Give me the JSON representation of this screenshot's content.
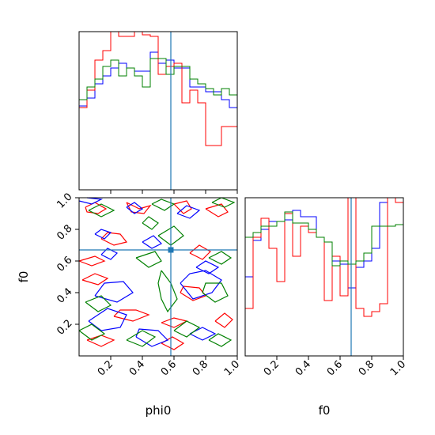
{
  "chart_data": {
    "type": "corner",
    "xlabels": [
      "phi0",
      "f0"
    ],
    "ylabels": [
      "",
      "f0"
    ],
    "tick_labels": [
      "0.2",
      "0.4",
      "0.6",
      "0.8",
      "1.0"
    ],
    "xlim": [
      0,
      1
    ],
    "ylim": [
      0,
      1
    ],
    "truth": {
      "phi0": 0.58,
      "f0": 0.67,
      "color": "#1f77b4"
    },
    "series_colors": [
      "#0000ff",
      "#ff0000",
      "#008000"
    ],
    "hist_phi0": {
      "bin_edges": [
        0.0,
        0.05,
        0.1,
        0.15,
        0.2,
        0.25,
        0.3,
        0.35,
        0.4,
        0.45,
        0.5,
        0.55,
        0.6,
        0.65,
        0.7,
        0.75,
        0.8,
        0.85,
        0.9,
        0.95,
        1.0
      ],
      "blue": [
        0.53,
        0.58,
        0.67,
        0.72,
        0.77,
        0.8,
        0.77,
        0.75,
        0.75,
        0.87,
        0.8,
        0.82,
        0.77,
        0.77,
        0.65,
        0.65,
        0.62,
        0.62,
        0.57,
        0.52
      ],
      "red": [
        0.52,
        0.63,
        0.82,
        0.88,
        1.0,
        0.97,
        0.97,
        1.0,
        0.98,
        0.97,
        0.73,
        0.78,
        0.8,
        0.55,
        0.63,
        0.55,
        0.28,
        0.28,
        0.4,
        0.4
      ],
      "green": [
        0.57,
        0.65,
        0.7,
        0.78,
        0.82,
        0.72,
        0.77,
        0.72,
        0.65,
        0.83,
        0.83,
        0.73,
        0.78,
        0.78,
        0.7,
        0.67,
        0.64,
        0.6,
        0.64,
        0.6
      ]
    },
    "hist_f0": {
      "bin_edges": [
        0.0,
        0.05,
        0.1,
        0.15,
        0.2,
        0.25,
        0.3,
        0.35,
        0.4,
        0.45,
        0.5,
        0.55,
        0.6,
        0.65,
        0.7,
        0.75,
        0.8,
        0.85,
        0.9,
        0.95,
        1.0
      ],
      "blue": [
        0.5,
        0.73,
        0.8,
        0.85,
        0.85,
        0.86,
        0.92,
        0.88,
        0.88,
        0.75,
        0.72,
        0.6,
        0.58,
        0.43,
        0.56,
        0.6,
        0.68,
        0.97,
        1.0,
        1.0
      ],
      "red": [
        0.3,
        0.75,
        0.87,
        0.68,
        0.47,
        0.9,
        0.63,
        0.82,
        0.78,
        0.75,
        0.35,
        0.63,
        0.38,
        1.0,
        0.3,
        0.25,
        0.28,
        0.33,
        1.0,
        0.97
      ],
      "green": [
        0.75,
        0.78,
        0.82,
        0.82,
        0.85,
        0.91,
        0.84,
        0.84,
        0.8,
        0.75,
        0.72,
        0.57,
        0.6,
        0.58,
        0.6,
        0.65,
        0.82,
        0.82,
        0.82,
        0.83
      ]
    },
    "contours_2d": [
      {
        "color": "#ff0000",
        "points": [
          [
            0.04,
            0.94
          ],
          [
            0.1,
            0.97
          ],
          [
            0.17,
            0.93
          ],
          [
            0.12,
            0.9
          ],
          [
            0.05,
            0.91
          ],
          [
            0.04,
            0.94
          ]
        ]
      },
      {
        "color": "#ff0000",
        "points": [
          [
            0.3,
            0.97
          ],
          [
            0.38,
            0.93
          ],
          [
            0.45,
            0.95
          ],
          [
            0.41,
            0.9
          ],
          [
            0.33,
            0.91
          ],
          [
            0.3,
            0.97
          ]
        ]
      },
      {
        "color": "#ff0000",
        "points": [
          [
            0.6,
            0.96
          ],
          [
            0.66,
            0.9
          ],
          [
            0.71,
            0.93
          ],
          [
            0.68,
            0.98
          ],
          [
            0.6,
            0.96
          ]
        ]
      },
      {
        "color": "#ff0000",
        "points": [
          [
            0.8,
            0.93
          ],
          [
            0.88,
            0.88
          ],
          [
            0.94,
            0.91
          ],
          [
            0.9,
            0.96
          ],
          [
            0.8,
            0.93
          ]
        ]
      },
      {
        "color": "#ff0000",
        "points": [
          [
            0.14,
            0.74
          ],
          [
            0.22,
            0.7
          ],
          [
            0.3,
            0.72
          ],
          [
            0.26,
            0.77
          ],
          [
            0.18,
            0.78
          ],
          [
            0.14,
            0.74
          ]
        ]
      },
      {
        "color": "#ff0000",
        "points": [
          [
            0.0,
            0.6
          ],
          [
            0.08,
            0.57
          ],
          [
            0.16,
            0.6
          ],
          [
            0.1,
            0.63
          ],
          [
            0.0,
            0.6
          ]
        ]
      },
      {
        "color": "#ff0000",
        "points": [
          [
            0.02,
            0.48
          ],
          [
            0.12,
            0.45
          ],
          [
            0.18,
            0.49
          ],
          [
            0.1,
            0.52
          ],
          [
            0.02,
            0.48
          ]
        ]
      },
      {
        "color": "#ff0000",
        "points": [
          [
            0.7,
            0.65
          ],
          [
            0.78,
            0.61
          ],
          [
            0.83,
            0.66
          ],
          [
            0.76,
            0.7
          ],
          [
            0.7,
            0.65
          ]
        ]
      },
      {
        "color": "#ff0000",
        "points": [
          [
            0.64,
            0.4
          ],
          [
            0.72,
            0.35
          ],
          [
            0.8,
            0.38
          ],
          [
            0.76,
            0.43
          ],
          [
            0.66,
            0.44
          ],
          [
            0.64,
            0.4
          ]
        ]
      },
      {
        "color": "#ff0000",
        "points": [
          [
            0.22,
            0.25
          ],
          [
            0.34,
            0.22
          ],
          [
            0.44,
            0.26
          ],
          [
            0.36,
            0.29
          ],
          [
            0.26,
            0.29
          ],
          [
            0.22,
            0.25
          ]
        ]
      },
      {
        "color": "#ff0000",
        "points": [
          [
            0.52,
            0.21
          ],
          [
            0.6,
            0.18
          ],
          [
            0.68,
            0.22
          ],
          [
            0.6,
            0.24
          ],
          [
            0.52,
            0.21
          ]
        ]
      },
      {
        "color": "#ff0000",
        "points": [
          [
            0.05,
            0.1
          ],
          [
            0.14,
            0.06
          ],
          [
            0.22,
            0.1
          ],
          [
            0.14,
            0.13
          ],
          [
            0.05,
            0.1
          ]
        ]
      },
      {
        "color": "#ff0000",
        "points": [
          [
            0.52,
            0.08
          ],
          [
            0.6,
            0.04
          ],
          [
            0.66,
            0.08
          ],
          [
            0.59,
            0.12
          ],
          [
            0.52,
            0.08
          ]
        ]
      },
      {
        "color": "#ff0000",
        "points": [
          [
            0.86,
            0.22
          ],
          [
            0.92,
            0.18
          ],
          [
            0.97,
            0.23
          ],
          [
            0.92,
            0.27
          ],
          [
            0.86,
            0.22
          ]
        ]
      },
      {
        "color": "#0000ff",
        "points": [
          [
            0.0,
            0.98
          ],
          [
            0.08,
            0.96
          ],
          [
            0.14,
            0.99
          ],
          [
            0.05,
            1.0
          ]
        ]
      },
      {
        "color": "#0000ff",
        "points": [
          [
            0.3,
            0.94
          ],
          [
            0.35,
            0.9
          ],
          [
            0.4,
            0.93
          ],
          [
            0.35,
            0.97
          ],
          [
            0.3,
            0.94
          ]
        ]
      },
      {
        "color": "#0000ff",
        "points": [
          [
            0.62,
            0.9
          ],
          [
            0.7,
            0.87
          ],
          [
            0.76,
            0.92
          ],
          [
            0.68,
            0.95
          ],
          [
            0.62,
            0.9
          ]
        ]
      },
      {
        "color": "#0000ff",
        "points": [
          [
            0.1,
            0.77
          ],
          [
            0.16,
            0.74
          ],
          [
            0.2,
            0.78
          ],
          [
            0.14,
            0.8
          ],
          [
            0.1,
            0.77
          ]
        ]
      },
      {
        "color": "#0000ff",
        "points": [
          [
            0.14,
            0.64
          ],
          [
            0.2,
            0.61
          ],
          [
            0.24,
            0.65
          ],
          [
            0.18,
            0.68
          ],
          [
            0.14,
            0.64
          ]
        ]
      },
      {
        "color": "#0000ff",
        "points": [
          [
            0.4,
            0.72
          ],
          [
            0.46,
            0.68
          ],
          [
            0.52,
            0.71
          ],
          [
            0.47,
            0.76
          ],
          [
            0.4,
            0.72
          ]
        ]
      },
      {
        "color": "#0000ff",
        "points": [
          [
            0.74,
            0.56
          ],
          [
            0.82,
            0.52
          ],
          [
            0.88,
            0.56
          ],
          [
            0.8,
            0.6
          ],
          [
            0.74,
            0.56
          ]
        ]
      },
      {
        "color": "#0000ff",
        "points": [
          [
            0.64,
            0.46
          ],
          [
            0.72,
            0.36
          ],
          [
            0.84,
            0.4
          ],
          [
            0.9,
            0.48
          ],
          [
            0.8,
            0.54
          ],
          [
            0.7,
            0.52
          ],
          [
            0.64,
            0.46
          ]
        ]
      },
      {
        "color": "#0000ff",
        "points": [
          [
            0.1,
            0.38
          ],
          [
            0.24,
            0.34
          ],
          [
            0.34,
            0.4
          ],
          [
            0.28,
            0.47
          ],
          [
            0.16,
            0.46
          ],
          [
            0.1,
            0.38
          ]
        ]
      },
      {
        "color": "#0000ff",
        "points": [
          [
            0.06,
            0.22
          ],
          [
            0.14,
            0.16
          ],
          [
            0.26,
            0.18
          ],
          [
            0.3,
            0.26
          ],
          [
            0.18,
            0.3
          ],
          [
            0.06,
            0.22
          ]
        ]
      },
      {
        "color": "#0000ff",
        "points": [
          [
            0.36,
            0.12
          ],
          [
            0.46,
            0.06
          ],
          [
            0.56,
            0.1
          ],
          [
            0.5,
            0.16
          ],
          [
            0.38,
            0.17
          ],
          [
            0.36,
            0.12
          ]
        ]
      },
      {
        "color": "#0000ff",
        "points": [
          [
            0.7,
            0.14
          ],
          [
            0.78,
            0.1
          ],
          [
            0.86,
            0.14
          ],
          [
            0.78,
            0.18
          ],
          [
            0.7,
            0.14
          ]
        ]
      },
      {
        "color": "#008000",
        "points": [
          [
            0.06,
            0.92
          ],
          [
            0.14,
            0.88
          ],
          [
            0.22,
            0.92
          ],
          [
            0.14,
            0.96
          ],
          [
            0.06,
            0.92
          ]
        ]
      },
      {
        "color": "#008000",
        "points": [
          [
            0.46,
            0.96
          ],
          [
            0.54,
            0.92
          ],
          [
            0.6,
            0.96
          ],
          [
            0.52,
            0.99
          ],
          [
            0.46,
            0.96
          ]
        ]
      },
      {
        "color": "#008000",
        "points": [
          [
            0.84,
            0.97
          ],
          [
            0.92,
            0.94
          ],
          [
            0.98,
            0.97
          ],
          [
            0.9,
            1.0
          ],
          [
            0.84,
            0.97
          ]
        ]
      },
      {
        "color": "#008000",
        "points": [
          [
            0.4,
            0.84
          ],
          [
            0.46,
            0.8
          ],
          [
            0.5,
            0.84
          ],
          [
            0.44,
            0.88
          ],
          [
            0.4,
            0.84
          ]
        ]
      },
      {
        "color": "#008000",
        "points": [
          [
            0.5,
            0.76
          ],
          [
            0.58,
            0.7
          ],
          [
            0.66,
            0.76
          ],
          [
            0.6,
            0.82
          ],
          [
            0.5,
            0.76
          ]
        ]
      },
      {
        "color": "#008000",
        "points": [
          [
            0.36,
            0.62
          ],
          [
            0.44,
            0.56
          ],
          [
            0.52,
            0.6
          ],
          [
            0.48,
            0.66
          ],
          [
            0.36,
            0.62
          ]
        ]
      },
      {
        "color": "#008000",
        "points": [
          [
            0.52,
            0.54
          ],
          [
            0.58,
            0.46
          ],
          [
            0.62,
            0.36
          ],
          [
            0.56,
            0.28
          ],
          [
            0.52,
            0.36
          ],
          [
            0.5,
            0.46
          ],
          [
            0.52,
            0.54
          ]
        ]
      },
      {
        "color": "#008000",
        "points": [
          [
            0.82,
            0.62
          ],
          [
            0.9,
            0.58
          ],
          [
            0.96,
            0.62
          ],
          [
            0.9,
            0.66
          ],
          [
            0.82,
            0.62
          ]
        ]
      },
      {
        "color": "#008000",
        "points": [
          [
            0.78,
            0.4
          ],
          [
            0.86,
            0.34
          ],
          [
            0.94,
            0.38
          ],
          [
            0.9,
            0.46
          ],
          [
            0.8,
            0.46
          ],
          [
            0.78,
            0.4
          ]
        ]
      },
      {
        "color": "#008000",
        "points": [
          [
            0.04,
            0.34
          ],
          [
            0.12,
            0.28
          ],
          [
            0.2,
            0.32
          ],
          [
            0.14,
            0.38
          ],
          [
            0.04,
            0.34
          ]
        ]
      },
      {
        "color": "#008000",
        "points": [
          [
            0.0,
            0.16
          ],
          [
            0.08,
            0.1
          ],
          [
            0.16,
            0.14
          ],
          [
            0.08,
            0.2
          ],
          [
            0.0,
            0.16
          ]
        ]
      },
      {
        "color": "#008000",
        "points": [
          [
            0.3,
            0.1
          ],
          [
            0.4,
            0.06
          ],
          [
            0.48,
            0.12
          ],
          [
            0.4,
            0.16
          ],
          [
            0.3,
            0.1
          ]
        ]
      },
      {
        "color": "#008000",
        "points": [
          [
            0.6,
            0.16
          ],
          [
            0.68,
            0.12
          ],
          [
            0.76,
            0.18
          ],
          [
            0.68,
            0.22
          ],
          [
            0.6,
            0.16
          ]
        ]
      },
      {
        "color": "#008000",
        "points": [
          [
            0.82,
            0.1
          ],
          [
            0.9,
            0.06
          ],
          [
            0.96,
            0.1
          ],
          [
            0.88,
            0.14
          ],
          [
            0.82,
            0.1
          ]
        ]
      }
    ]
  }
}
